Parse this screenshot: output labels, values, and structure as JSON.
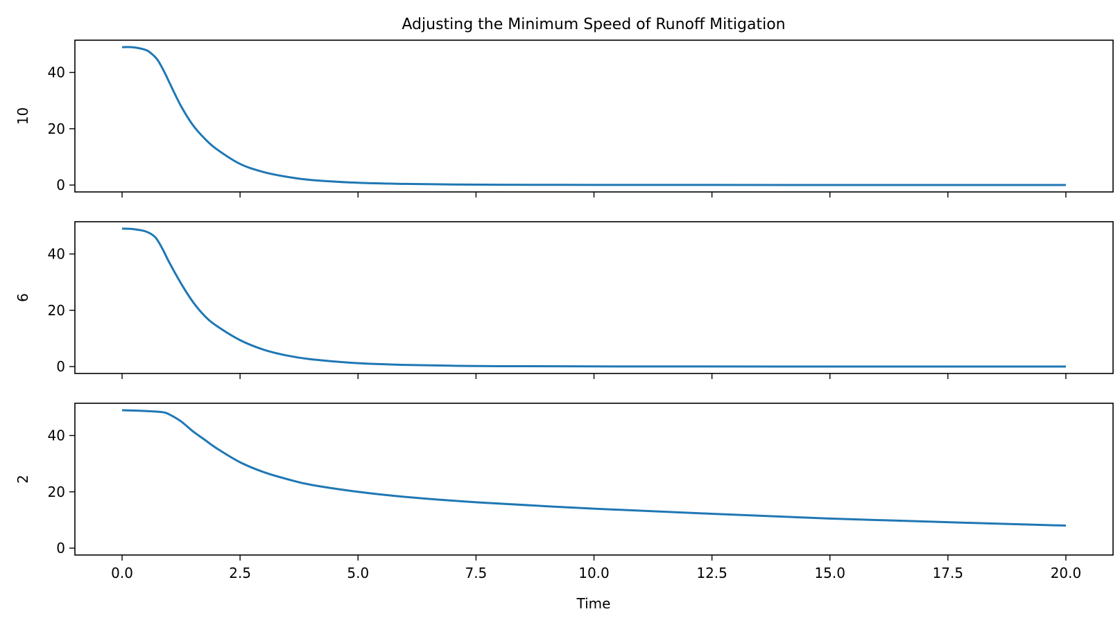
{
  "figure": {
    "title": "Adjusting the Minimum Speed of Runoff Mitigation"
  },
  "chart_data": {
    "type": "line",
    "title": "Adjusting the Minimum Speed of Runoff Mitigation",
    "xlabel": "Time",
    "xlim": [
      -1.0,
      21.0
    ],
    "x_ticks": [
      0.0,
      2.5,
      5.0,
      7.5,
      10.0,
      12.5,
      15.0,
      17.5,
      20.0
    ],
    "x_tick_labels": [
      "0.0",
      "2.5",
      "5.0",
      "7.5",
      "10.0",
      "12.5",
      "15.0",
      "17.5",
      "20.0"
    ],
    "shared_x": true,
    "grid": false,
    "line_color": "#1f77b4",
    "panels": [
      {
        "ylabel": "10",
        "ylim": [
          -2.45,
          51.45
        ],
        "y_ticks": [
          0,
          20,
          40
        ],
        "y_tick_labels": [
          "0",
          "20",
          "40"
        ],
        "x": [
          0,
          0.25,
          0.5,
          0.6,
          0.75,
          0.9,
          1.0,
          1.25,
          1.5,
          1.75,
          2.0,
          2.5,
          3.0,
          3.5,
          4.0,
          5.0,
          6.0,
          7.0,
          8.0,
          10.0,
          12.0,
          15.0,
          20.0
        ],
        "y": [
          49,
          48.9,
          48,
          47,
          44.5,
          40,
          36.5,
          28,
          21.3,
          16.5,
          12.8,
          7.5,
          4.6,
          2.9,
          1.8,
          0.8,
          0.4,
          0.2,
          0.1,
          0.05,
          0.03,
          0.02,
          0.0
        ]
      },
      {
        "ylabel": "6",
        "ylim": [
          -2.45,
          51.45
        ],
        "y_ticks": [
          0,
          20,
          40
        ],
        "y_tick_labels": [
          "0",
          "20",
          "40"
        ],
        "x": [
          0,
          0.25,
          0.5,
          0.7,
          0.85,
          1.0,
          1.25,
          1.5,
          1.75,
          2.0,
          2.5,
          3.0,
          3.5,
          4.0,
          5.0,
          6.0,
          7.0,
          8.0,
          10.0,
          12.0,
          15.0,
          20.0
        ],
        "y": [
          49,
          48.8,
          48,
          46,
          42,
          37,
          29.5,
          23,
          18,
          14.5,
          9.4,
          6.0,
          3.9,
          2.6,
          1.2,
          0.6,
          0.3,
          0.15,
          0.07,
          0.03,
          0.02,
          0.0
        ]
      },
      {
        "ylabel": "2",
        "ylim": [
          -2.45,
          51.45
        ],
        "y_ticks": [
          0,
          20,
          40
        ],
        "y_tick_labels": [
          "0",
          "20",
          "40"
        ],
        "x": [
          0,
          0.5,
          0.85,
          1.0,
          1.25,
          1.5,
          1.75,
          2.0,
          2.5,
          3.0,
          3.5,
          4.0,
          5.0,
          6.0,
          7.5,
          10.0,
          12.5,
          15.0,
          17.5,
          20.0
        ],
        "y": [
          49,
          48.7,
          48.3,
          47.5,
          45,
          41.5,
          38.5,
          35.5,
          30.5,
          27,
          24.5,
          22.5,
          20,
          18.2,
          16.3,
          14,
          12.2,
          10.5,
          9.2,
          8
        ]
      }
    ]
  }
}
